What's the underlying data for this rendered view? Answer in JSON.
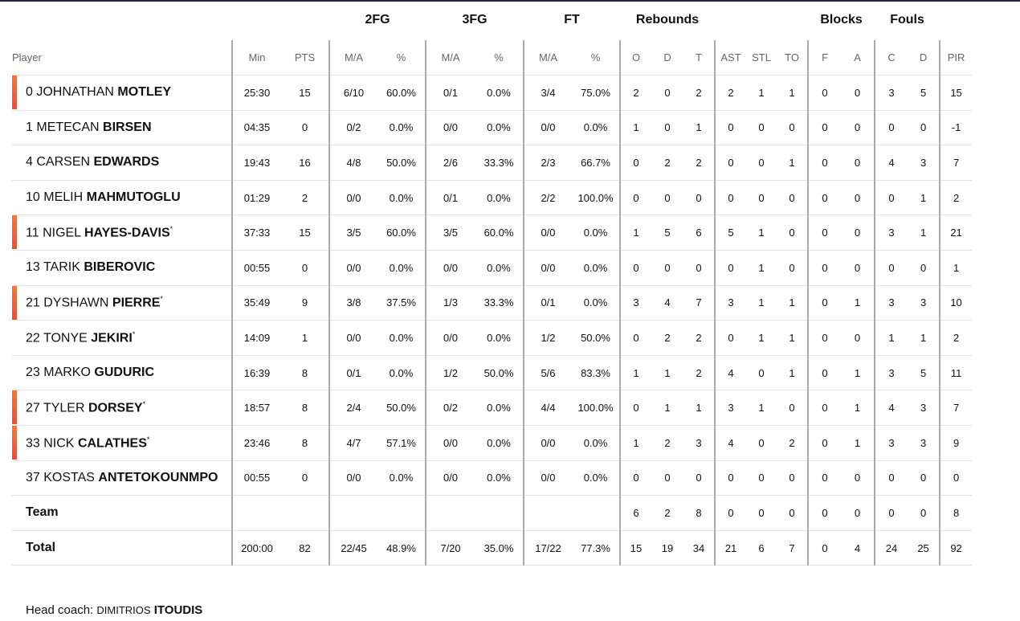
{
  "table": {
    "group_headers": [
      "2FG",
      "3FG",
      "FT",
      "Rebounds",
      "Blocks",
      "Fouls"
    ],
    "columns": [
      "Player",
      "Min",
      "PTS",
      "M/A",
      "%",
      "M/A",
      "%",
      "M/A",
      "%",
      "O",
      "D",
      "T",
      "AST",
      "STL",
      "TO",
      "F",
      "A",
      "C",
      "D",
      "PIR"
    ],
    "rows": [
      {
        "number": "0",
        "first": "JOHNATHAN",
        "last": "MOTLEY",
        "starter": true,
        "stats": [
          "25:30",
          "15",
          "6/10",
          "60.0%",
          "0/1",
          "0.0%",
          "3/4",
          "75.0%",
          "2",
          "0",
          "2",
          "2",
          "1",
          "1",
          "0",
          "0",
          "3",
          "5",
          "15"
        ]
      },
      {
        "number": "1",
        "first": "METECAN",
        "last": "BIRSEN",
        "starter": false,
        "stats": [
          "04:35",
          "0",
          "0/2",
          "0.0%",
          "0/0",
          "0.0%",
          "0/0",
          "0.0%",
          "1",
          "0",
          "1",
          "0",
          "0",
          "0",
          "0",
          "0",
          "0",
          "0",
          "-1"
        ]
      },
      {
        "number": "4",
        "first": "CARSEN",
        "last": "EDWARDS",
        "starter": false,
        "stats": [
          "19:43",
          "16",
          "4/8",
          "50.0%",
          "2/6",
          "33.3%",
          "2/3",
          "66.7%",
          "0",
          "2",
          "2",
          "0",
          "0",
          "1",
          "0",
          "0",
          "4",
          "3",
          "7"
        ]
      },
      {
        "number": "10",
        "first": "MELIH",
        "last": "MAHMUTOGLU",
        "starter": false,
        "stats": [
          "01:29",
          "2",
          "0/0",
          "0.0%",
          "0/1",
          "0.0%",
          "2/2",
          "100.0%",
          "0",
          "0",
          "0",
          "0",
          "0",
          "0",
          "0",
          "0",
          "0",
          "1",
          "2"
        ]
      },
      {
        "number": "11",
        "first": "NIGEL",
        "last": "HAYES-DAVIS",
        "suffix": "*",
        "starter": true,
        "stats": [
          "37:33",
          "15",
          "3/5",
          "60.0%",
          "3/5",
          "60.0%",
          "0/0",
          "0.0%",
          "1",
          "5",
          "6",
          "5",
          "1",
          "0",
          "0",
          "0",
          "3",
          "1",
          "21"
        ]
      },
      {
        "number": "13",
        "first": "TARIK",
        "last": "BIBEROVIC",
        "starter": false,
        "stats": [
          "00:55",
          "0",
          "0/0",
          "0.0%",
          "0/0",
          "0.0%",
          "0/0",
          "0.0%",
          "0",
          "0",
          "0",
          "0",
          "1",
          "0",
          "0",
          "0",
          "0",
          "0",
          "1"
        ]
      },
      {
        "number": "21",
        "first": "DYSHAWN",
        "last": "PIERRE",
        "suffix": "*",
        "starter": true,
        "stats": [
          "35:49",
          "9",
          "3/8",
          "37.5%",
          "1/3",
          "33.3%",
          "0/1",
          "0.0%",
          "3",
          "4",
          "7",
          "3",
          "1",
          "1",
          "0",
          "1",
          "3",
          "3",
          "10"
        ]
      },
      {
        "number": "22",
        "first": "TONYE",
        "last": "JEKIRI",
        "suffix": "*",
        "starter": false,
        "stats": [
          "14:09",
          "1",
          "0/0",
          "0.0%",
          "0/0",
          "0.0%",
          "1/2",
          "50.0%",
          "0",
          "2",
          "2",
          "0",
          "1",
          "1",
          "0",
          "0",
          "1",
          "1",
          "2"
        ]
      },
      {
        "number": "23",
        "first": "MARKO",
        "last": "GUDURIC",
        "starter": false,
        "stats": [
          "16:39",
          "8",
          "0/1",
          "0.0%",
          "1/2",
          "50.0%",
          "5/6",
          "83.3%",
          "1",
          "1",
          "2",
          "4",
          "0",
          "1",
          "0",
          "1",
          "3",
          "5",
          "11"
        ]
      },
      {
        "number": "27",
        "first": "TYLER",
        "last": "DORSEY",
        "suffix": "*",
        "starter": true,
        "stats": [
          "18:57",
          "8",
          "2/4",
          "50.0%",
          "0/2",
          "0.0%",
          "4/4",
          "100.0%",
          "0",
          "1",
          "1",
          "3",
          "1",
          "0",
          "0",
          "1",
          "4",
          "3",
          "7"
        ]
      },
      {
        "number": "33",
        "first": "NICK",
        "last": "CALATHES",
        "suffix": "*",
        "starter": true,
        "stats": [
          "23:46",
          "8",
          "4/7",
          "57.1%",
          "0/0",
          "0.0%",
          "0/0",
          "0.0%",
          "1",
          "2",
          "3",
          "4",
          "0",
          "2",
          "0",
          "1",
          "3",
          "3",
          "9"
        ]
      },
      {
        "number": "37",
        "first": "KOSTAS",
        "last": "ANTETOKOUNMPO",
        "starter": false,
        "stats": [
          "00:55",
          "0",
          "0/0",
          "0.0%",
          "0/0",
          "0.0%",
          "0/0",
          "0.0%",
          "0",
          "0",
          "0",
          "0",
          "0",
          "0",
          "0",
          "0",
          "0",
          "0",
          "0"
        ]
      }
    ],
    "team": {
      "label": "Team",
      "stats": [
        null,
        null,
        null,
        null,
        null,
        null,
        null,
        null,
        "6",
        "2",
        "8",
        "0",
        "0",
        "0",
        "0",
        "0",
        "0",
        "0",
        "8"
      ]
    },
    "total": {
      "label": "Total",
      "stats": [
        "200:00",
        "82",
        "22/45",
        "48.9%",
        "7/20",
        "35.0%",
        "17/22",
        "77.3%",
        "15",
        "19",
        "34",
        "21",
        "6",
        "7",
        "0",
        "4",
        "24",
        "25",
        "92"
      ]
    }
  },
  "footer": {
    "label": "Head coach:",
    "first": "DIMITRIOS",
    "last": "ITOUDIS"
  }
}
